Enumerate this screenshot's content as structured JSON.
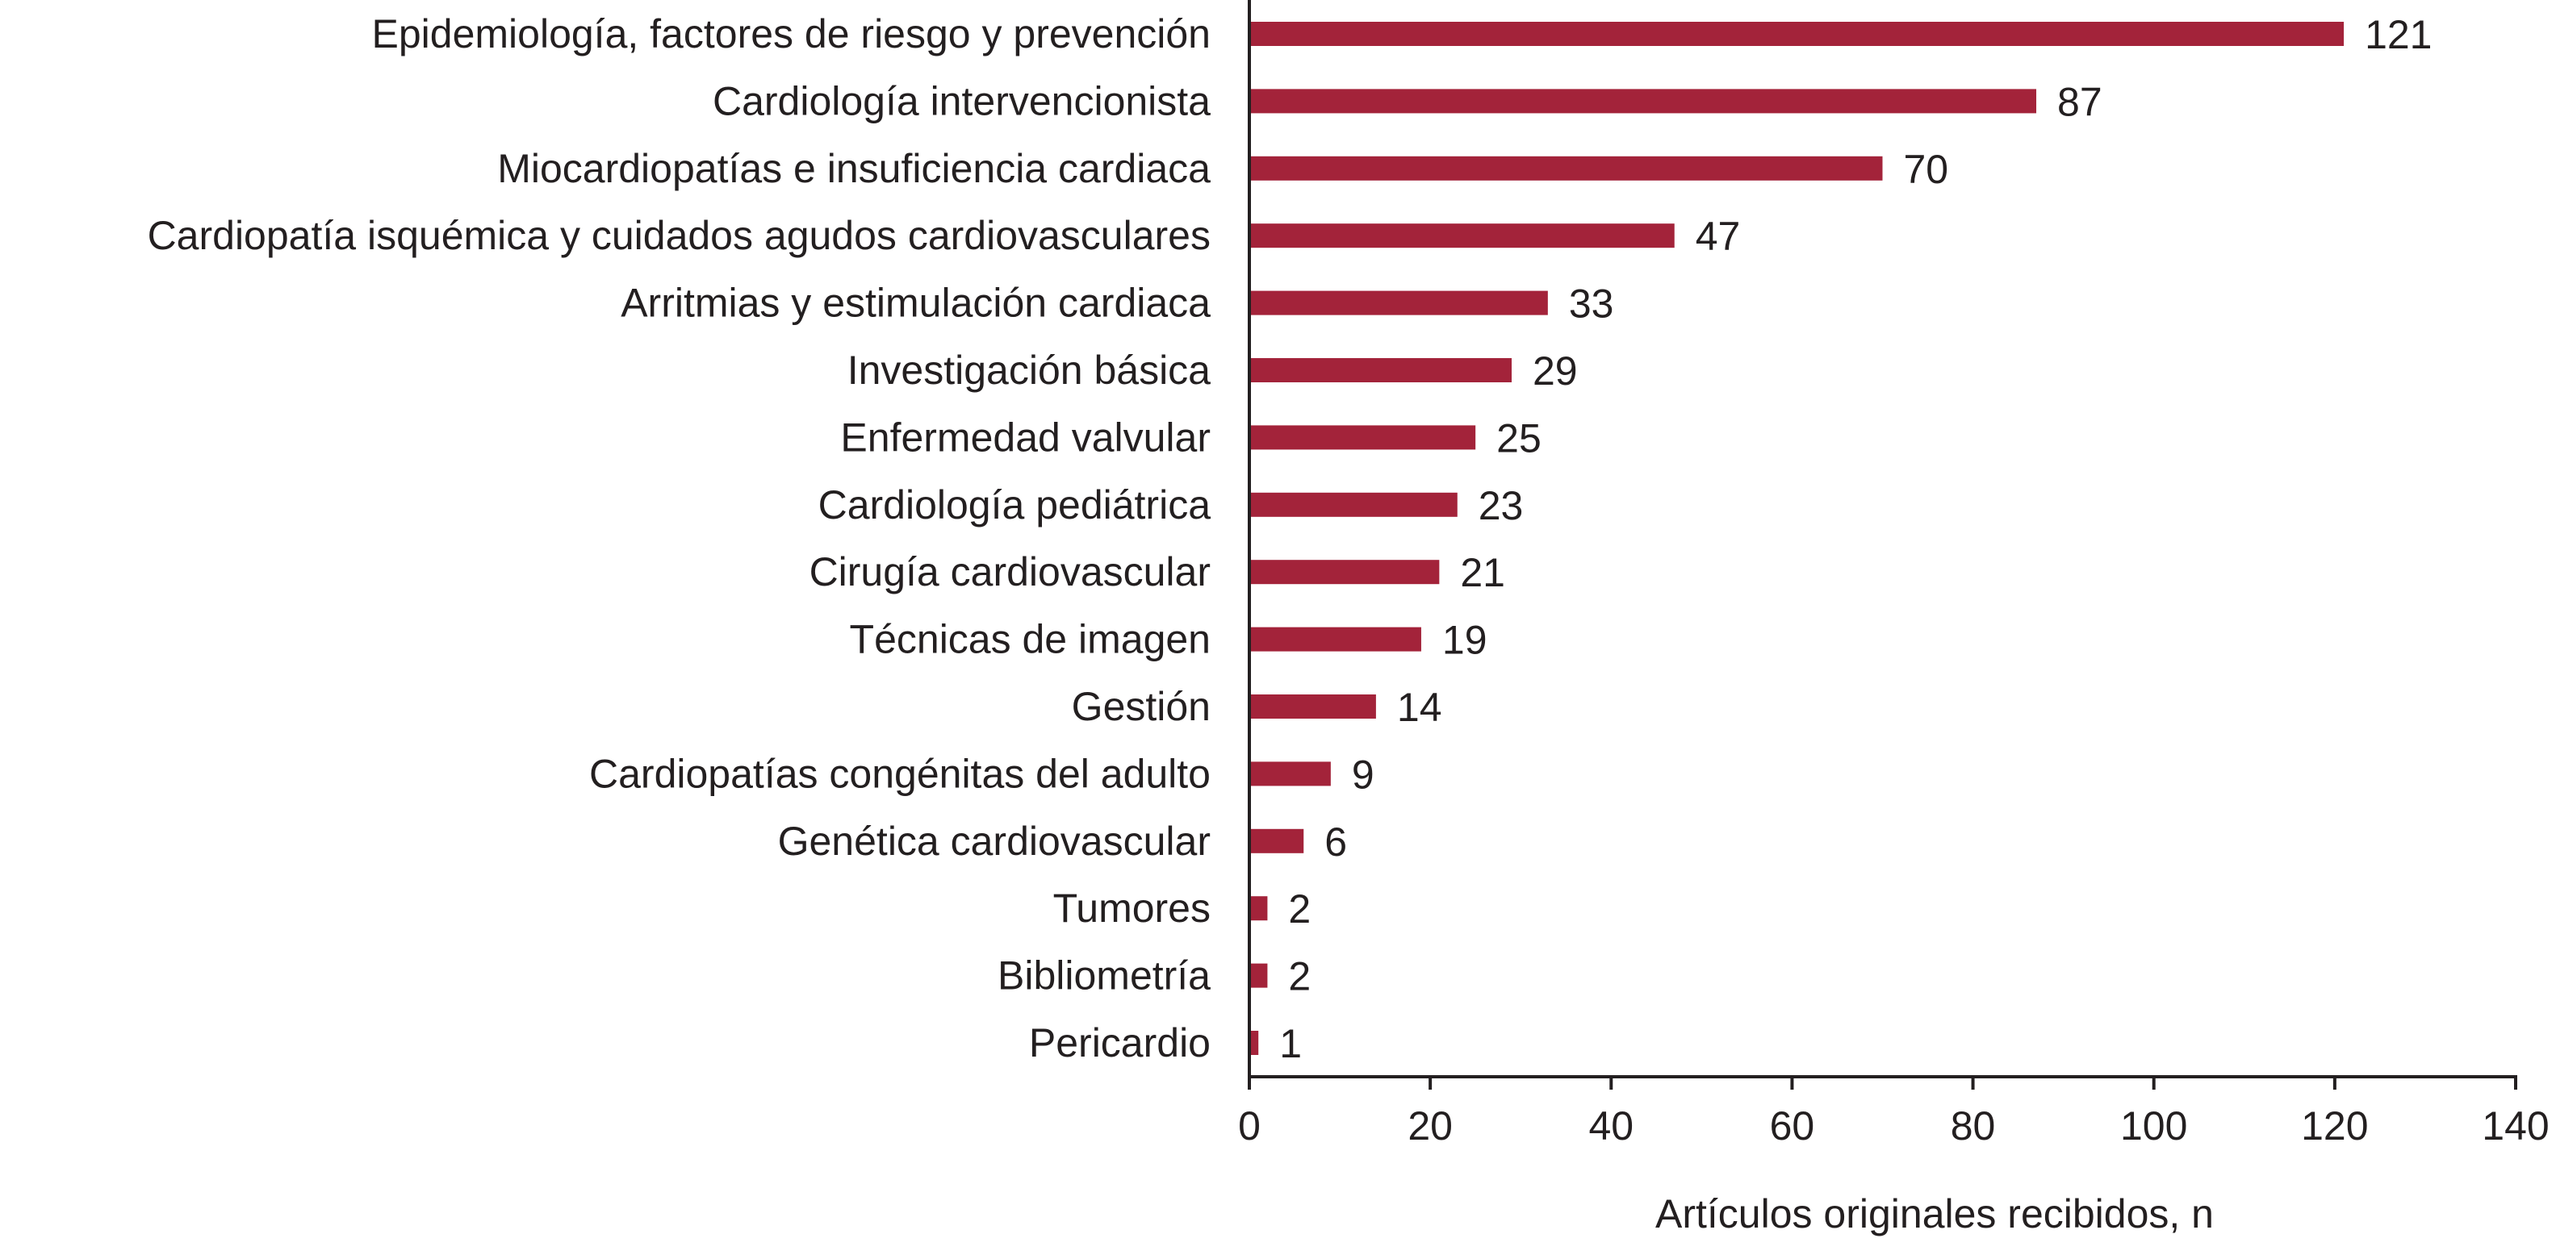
{
  "chart_data": {
    "type": "bar",
    "orientation": "horizontal",
    "categories": [
      "Epidemiología, factores de riesgo y prevención",
      "Cardiología intervencionista",
      "Miocardiopatías e insuficiencia cardiaca",
      "Cardiopatía isquémica y cuidados agudos cardiovasculares",
      "Arritmias y estimulación cardiaca",
      "Investigación básica",
      "Enfermedad valvular",
      "Cardiología pediátrica",
      "Cirugía cardiovascular",
      "Técnicas de imagen",
      "Gestión",
      "Cardiopatías congénitas del adulto",
      "Genética cardiovascular",
      "Tumores",
      "Bibliometría",
      "Pericardio"
    ],
    "values": [
      121,
      87,
      70,
      47,
      33,
      29,
      25,
      23,
      21,
      19,
      14,
      9,
      6,
      2,
      2,
      1
    ],
    "title": "",
    "xlabel": "Artículos originales recibidos, n",
    "ylabel": "",
    "xlim": [
      0,
      140
    ],
    "xticks": [
      0,
      20,
      40,
      60,
      80,
      100,
      120,
      140
    ],
    "grid": false,
    "legend": "none",
    "bar_color": "#a3233a",
    "data_labels": true
  }
}
